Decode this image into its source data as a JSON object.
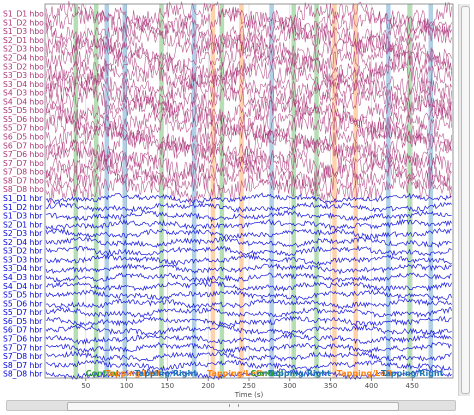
{
  "channels": [
    "S1_D1 hbo",
    "S1_D2 hbo",
    "S1_D3 hbo",
    "S2_D1 hbo",
    "S2_D3 hbo",
    "S2_D4 hbo",
    "S3_D2 hbo",
    "S3_D3 hbo",
    "S3_D4 hbo",
    "S4_D3 hbo",
    "S4_D4 hbo",
    "S5_D5 hbo",
    "S5_D6 hbo",
    "S5_D7 hbo",
    "S6_D5 hbo",
    "S6_D7 hbo",
    "S7_D6 hbo",
    "S7_D7 hbo",
    "S7_D8 hbo",
    "S8_D7 hbo",
    "S8_D8 hbo",
    "S1_D1 hbr",
    "S1_D2 hbr",
    "S1_D3 hbr",
    "S2_D1 hbr",
    "S2_D3 hbr",
    "S2_D4 hbr",
    "S3_D2 hbr",
    "S3_D3 hbr",
    "S3_D4 hbr",
    "S4_D3 hbr",
    "S4_D4 hbr",
    "S5_D5 hbr",
    "S5_D6 hbr",
    "S5_D7 hbr",
    "S6_D5 hbr",
    "S6_D7 hbr",
    "S7_D6 hbr",
    "S7_D7 hbr",
    "S7_D8 hbr",
    "S8_D7 hbr",
    "S8_D8 hbr"
  ],
  "colors": {
    "hbo": "#aa3377",
    "hbr": "#0000dd",
    "control": "#2ca02c",
    "tapping_left": "#ff7f0e",
    "tapping_right": "#1f77b4",
    "grid": "#d0d0d0",
    "tick": "#4b4b4b"
  },
  "xaxis": {
    "label": "Time (s)",
    "ticks": [
      "50",
      "100",
      "150",
      "200",
      "250",
      "300",
      "350",
      "400",
      "450"
    ],
    "tick_values": [
      50,
      100,
      150,
      200,
      250,
      300,
      350,
      400,
      450
    ],
    "xlim": [
      0,
      500
    ]
  },
  "annotations": [
    {
      "t": 35,
      "type": "control"
    },
    {
      "t": 60,
      "type": "control"
    },
    {
      "t": 73,
      "type": "tapping_right"
    },
    {
      "t": 95,
      "type": "tapping_right"
    },
    {
      "t": 140,
      "type": "control"
    },
    {
      "t": 180,
      "type": "tapping_right"
    },
    {
      "t": 203,
      "type": "tapping_left"
    },
    {
      "t": 214,
      "type": "control"
    },
    {
      "t": 238,
      "type": "tapping_left"
    },
    {
      "t": 275,
      "type": "tapping_right"
    },
    {
      "t": 302,
      "type": "control"
    },
    {
      "t": 330,
      "type": "control"
    },
    {
      "t": 352,
      "type": "tapping_left"
    },
    {
      "t": 378,
      "type": "tapping_left"
    },
    {
      "t": 418,
      "type": "tapping_right"
    },
    {
      "t": 444,
      "type": "control"
    },
    {
      "t": 470,
      "type": "tapping_right"
    }
  ],
  "annotation_labels": [
    {
      "text": "Control",
      "type": "control",
      "t": 70
    },
    {
      "text": "Tapping/Left",
      "type": "tapping_left",
      "t": 108
    },
    {
      "text": "Tapping/Right",
      "type": "tapping_right",
      "t": 148
    },
    {
      "text": "Tapping/Left",
      "type": "tapping_left",
      "t": 233
    },
    {
      "text": "Control",
      "type": "control",
      "t": 272
    },
    {
      "text": "Tapping/Right",
      "type": "tapping_right",
      "t": 312
    },
    {
      "text": "Tapping/Left",
      "type": "tapping_left",
      "t": 392
    },
    {
      "text": "Tapping/Right",
      "type": "tapping_right",
      "t": 450
    }
  ]
}
